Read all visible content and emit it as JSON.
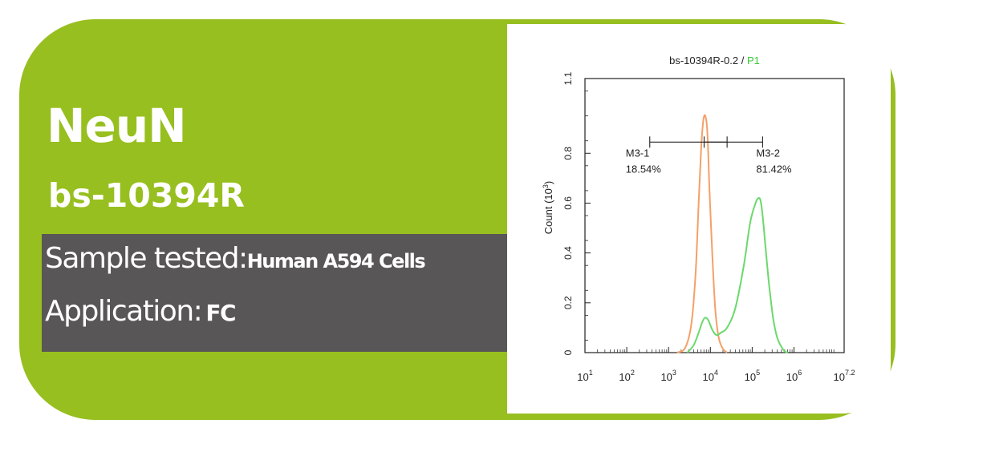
{
  "header": {
    "protein": "NeuN",
    "catalog": "bs-10394R"
  },
  "info": {
    "sample_label": "Sample tested:",
    "sample_value": "Human A594 Cells",
    "application_label": "Application:",
    "application_value": "FC"
  },
  "colors": {
    "brand_green": "#97bf1f",
    "info_box": "#595657",
    "control_curve": "#f4a067",
    "sample_curve": "#6ad96a",
    "title_green": "#33cc33"
  },
  "chart_data": {
    "type": "line",
    "title": "bs-10394R-0.2 / ",
    "title_highlight": "P1",
    "ylabel": "Count  (10",
    "ylabel_sup": "3",
    "ylabel_end": ")",
    "xlim": [
      1,
      7.2
    ],
    "ylim": [
      0,
      1.1
    ],
    "x_scale": "log10",
    "x_ticks": [
      1,
      2,
      3,
      4,
      5,
      6,
      7.2
    ],
    "x_tick_bases": [
      "10",
      "10",
      "10",
      "10",
      "10",
      "10",
      "10"
    ],
    "x_tick_exps": [
      "1",
      "2",
      "3",
      "4",
      "5",
      "6",
      "7.2"
    ],
    "y_ticks": [
      0,
      0.2,
      0.4,
      0.6,
      0.8,
      1.1
    ],
    "y_tick_labels": [
      "0",
      "0.2",
      "0.4",
      "0.6",
      "0.8",
      "1.1"
    ],
    "gates": [
      {
        "name": "M3-1",
        "percent": "18.54%",
        "x_range": [
          2.55,
          4.4
        ]
      },
      {
        "name": "M3-2",
        "percent": "81.42%",
        "x_range": [
          3.85,
          5.25
        ]
      }
    ],
    "gate_y": 0.845,
    "series": [
      {
        "color": "#f4a067",
        "x": [
          3.2,
          3.4,
          3.55,
          3.65,
          3.72,
          3.78,
          3.83,
          3.88,
          3.93,
          3.98,
          4.05,
          4.12,
          4.2,
          4.3,
          4.4
        ],
        "y": [
          0,
          0.02,
          0.12,
          0.33,
          0.6,
          0.82,
          0.93,
          0.95,
          0.88,
          0.65,
          0.38,
          0.17,
          0.06,
          0.015,
          0
        ]
      },
      {
        "color": "#6ad96a",
        "x": [
          3.45,
          3.6,
          3.72,
          3.8,
          3.87,
          3.95,
          4.05,
          4.15,
          4.25,
          4.4,
          4.6,
          4.8,
          4.95,
          5.08,
          5.15,
          5.2,
          5.25,
          5.32,
          5.4,
          5.5,
          5.6,
          5.75,
          5.85
        ],
        "y": [
          0,
          0.03,
          0.08,
          0.12,
          0.14,
          0.13,
          0.09,
          0.07,
          0.08,
          0.1,
          0.18,
          0.35,
          0.52,
          0.6,
          0.62,
          0.61,
          0.55,
          0.42,
          0.28,
          0.14,
          0.06,
          0.01,
          0
        ]
      }
    ]
  }
}
